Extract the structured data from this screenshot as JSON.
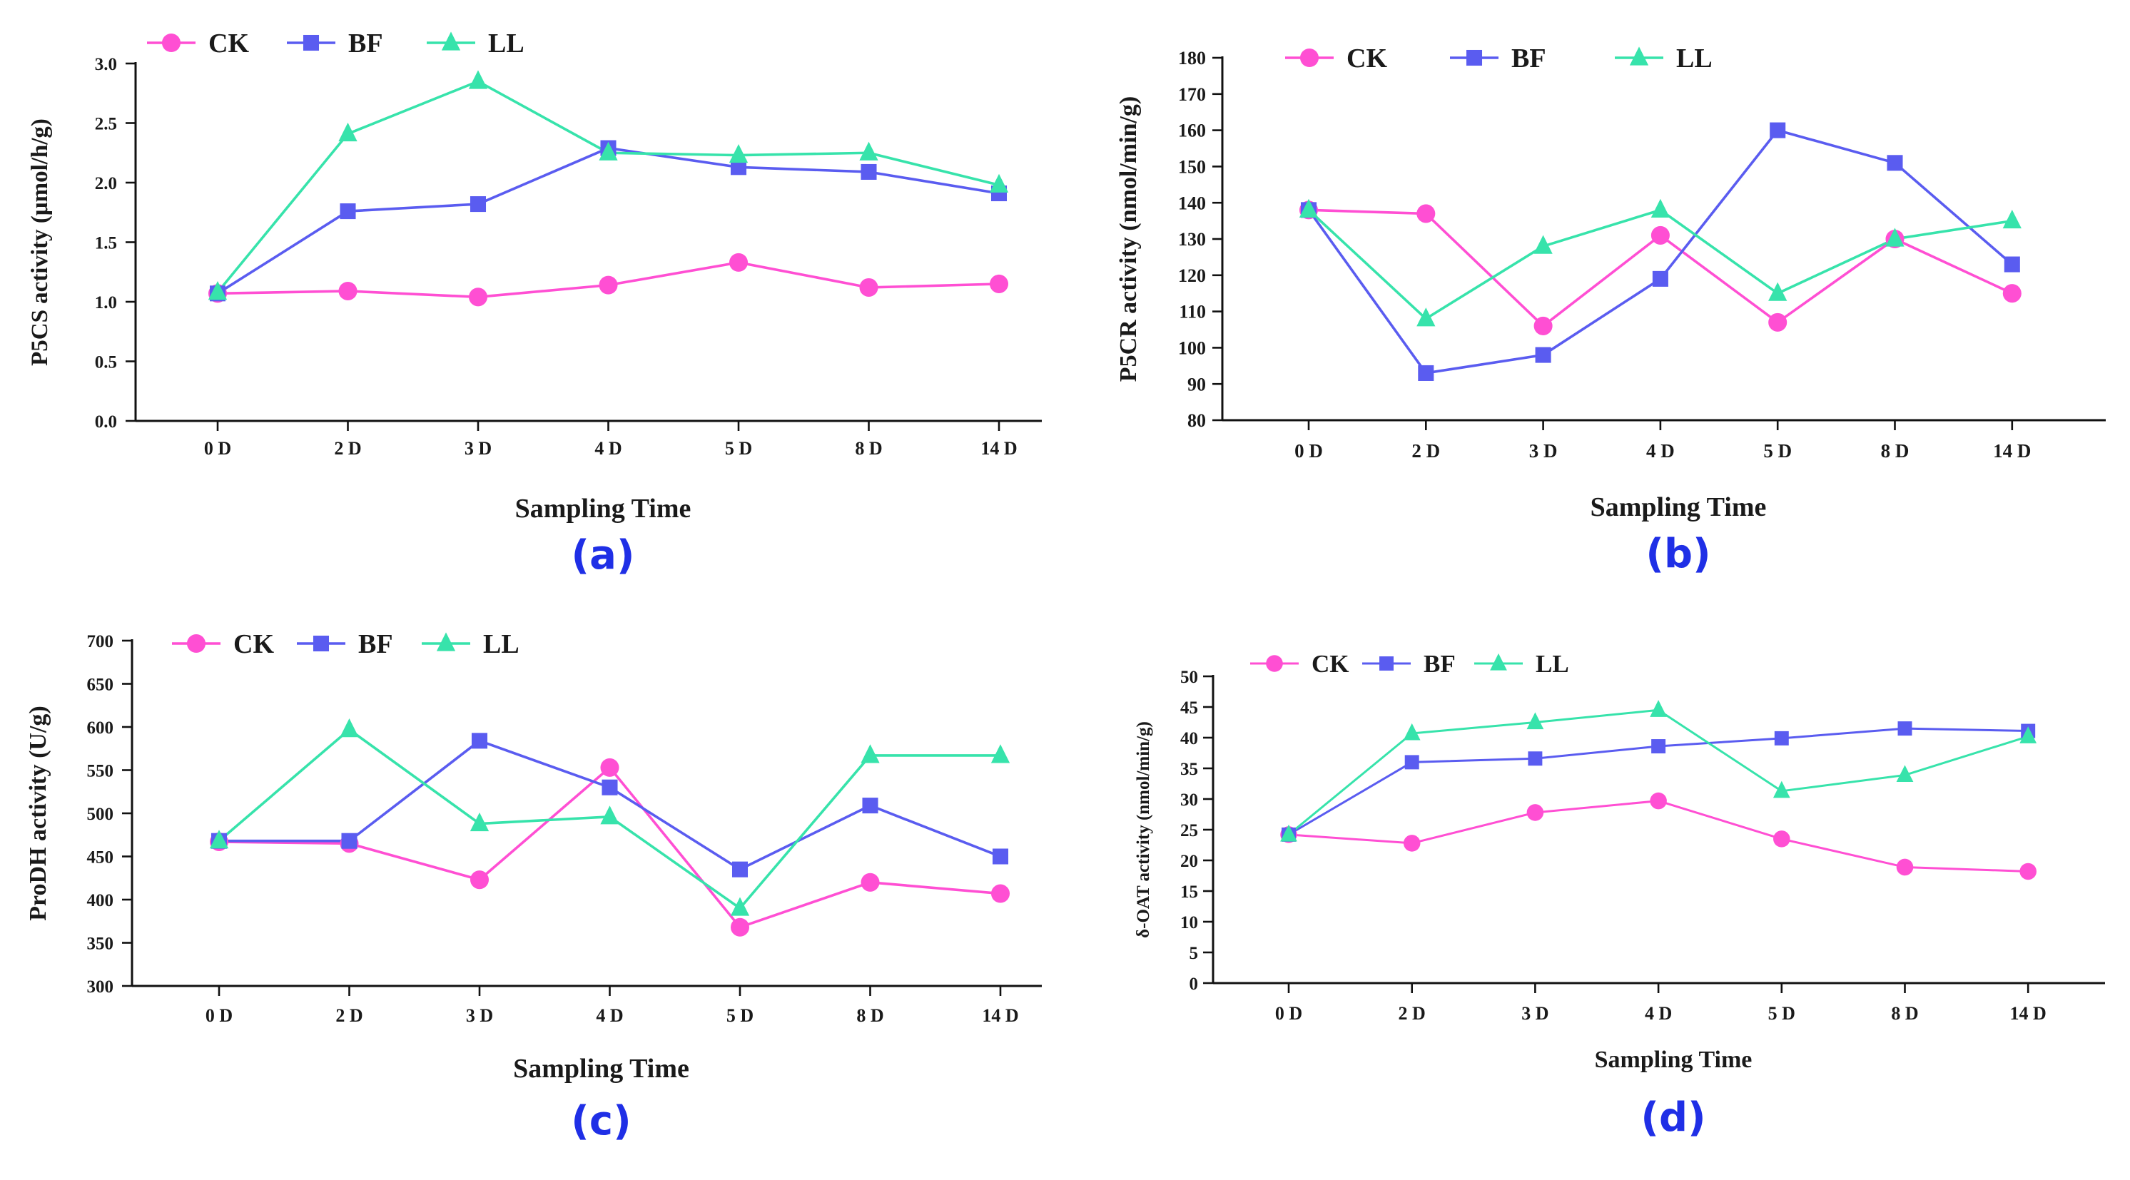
{
  "colors": {
    "CK": "#ff4fd3",
    "BF": "#5a5cf0",
    "LL": "#37e3ab",
    "panel_label": "#1f2fe6"
  },
  "chart_data": [
    {
      "panel": "(a)",
      "type": "line",
      "categories": [
        "0 D",
        "2 D",
        "3 D",
        "4 D",
        "5 D",
        "8 D",
        "14 D"
      ],
      "series": [
        {
          "name": "CK",
          "marker": "circle",
          "values": [
            1.07,
            1.09,
            1.04,
            1.14,
            1.33,
            1.12,
            1.15
          ]
        },
        {
          "name": "BF",
          "marker": "square",
          "values": [
            1.07,
            1.76,
            1.82,
            2.29,
            2.13,
            2.09,
            1.91
          ]
        },
        {
          "name": "LL",
          "marker": "triangle",
          "values": [
            1.08,
            2.41,
            2.85,
            2.25,
            2.23,
            2.25,
            1.98
          ]
        }
      ],
      "title": "",
      "xlabel": "Sampling Time",
      "ylabel": "P5CS activity (μmol/h/g)",
      "ylim": [
        0,
        3.0
      ],
      "yticks": [
        "0.0",
        "0.5",
        "1.0",
        "1.5",
        "2.0",
        "2.5",
        "3.0"
      ],
      "legend": "top-left"
    },
    {
      "panel": "(b)",
      "type": "line",
      "categories": [
        "0 D",
        "2 D",
        "3 D",
        "4 D",
        "5 D",
        "8 D",
        "14 D"
      ],
      "series": [
        {
          "name": "CK",
          "marker": "circle",
          "values": [
            138,
            137,
            106,
            131,
            107,
            130,
            115
          ]
        },
        {
          "name": "BF",
          "marker": "square",
          "values": [
            138,
            93,
            98,
            119,
            160,
            151,
            123
          ]
        },
        {
          "name": "LL",
          "marker": "triangle",
          "values": [
            138,
            108,
            128,
            138,
            115,
            130,
            135
          ]
        }
      ],
      "title": "",
      "xlabel": "Sampling Time",
      "ylabel": "P5CR activity (nmol/min/g)",
      "ylim": [
        80,
        180
      ],
      "yticks": [
        "80",
        "90",
        "100",
        "110",
        "120",
        "130",
        "140",
        "150",
        "160",
        "170",
        "180"
      ],
      "legend": "top-left"
    },
    {
      "panel": "(c)",
      "type": "line",
      "categories": [
        "0 D",
        "2 D",
        "3 D",
        "4 D",
        "5 D",
        "8 D",
        "14 D"
      ],
      "series": [
        {
          "name": "CK",
          "marker": "circle",
          "values": [
            467,
            465,
            423,
            553,
            368,
            420,
            407
          ]
        },
        {
          "name": "BF",
          "marker": "square",
          "values": [
            468,
            468,
            584,
            530,
            435,
            509,
            450
          ]
        },
        {
          "name": "LL",
          "marker": "triangle",
          "values": [
            468,
            597,
            488,
            496,
            390,
            567,
            567
          ]
        }
      ],
      "title": "",
      "xlabel": "Sampling Time",
      "ylabel": "ProDH activity (U/g)",
      "ylim": [
        300,
        700
      ],
      "yticks": [
        "300",
        "350",
        "400",
        "450",
        "500",
        "550",
        "600",
        "650",
        "700"
      ],
      "legend": "top-left"
    },
    {
      "panel": "(d)",
      "type": "line",
      "categories": [
        "0 D",
        "2 D",
        "3 D",
        "4 D",
        "5 D",
        "8 D",
        "14 D"
      ],
      "series": [
        {
          "name": "CK",
          "marker": "circle",
          "values": [
            24.2,
            22.8,
            27.8,
            29.7,
            23.5,
            18.9,
            18.2
          ]
        },
        {
          "name": "BF",
          "marker": "square",
          "values": [
            24.2,
            36.0,
            36.6,
            38.6,
            39.9,
            41.5,
            41.1
          ]
        },
        {
          "name": "LL",
          "marker": "triangle",
          "values": [
            24.2,
            40.7,
            42.5,
            44.5,
            31.3,
            33.9,
            40.2
          ]
        }
      ],
      "title": "",
      "xlabel": "Sampling Time",
      "ylabel": "δ-OAT activity (nmol/min/g)",
      "ylim": [
        0,
        50
      ],
      "yticks": [
        "0",
        "5",
        "10",
        "15",
        "20",
        "25",
        "30",
        "35",
        "40",
        "45",
        "50"
      ],
      "legend": "top-left"
    }
  ]
}
